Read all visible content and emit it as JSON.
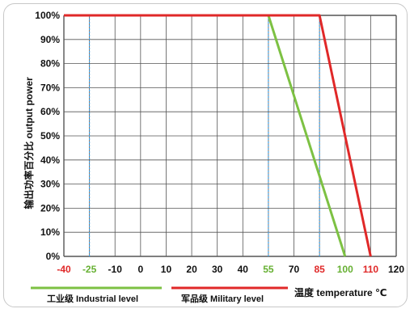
{
  "chart_data": {
    "type": "line",
    "ylabel": "输出功率百分比 output power",
    "xlabel": "温度 temperature ℃",
    "ylim": [
      0,
      100
    ],
    "y_ticks": [
      "0%",
      "10%",
      "20%",
      "30%",
      "40%",
      "50%",
      "60%",
      "70%",
      "80%",
      "90%",
      "100%"
    ],
    "x_ticks": [
      {
        "label": "-40",
        "color": "#e02828"
      },
      {
        "label": "-25",
        "color": "#66b032"
      },
      {
        "label": "-10",
        "color": "#111111"
      },
      {
        "label": "0",
        "color": "#111111"
      },
      {
        "label": "10",
        "color": "#111111"
      },
      {
        "label": "20",
        "color": "#111111"
      },
      {
        "label": "30",
        "color": "#111111"
      },
      {
        "label": "40",
        "color": "#111111"
      },
      {
        "label": "55",
        "color": "#66b032"
      },
      {
        "label": "70",
        "color": "#111111"
      },
      {
        "label": "85",
        "color": "#e02828"
      },
      {
        "label": "100",
        "color": "#66b032"
      },
      {
        "label": "110",
        "color": "#e02828"
      },
      {
        "label": "120",
        "color": "#111111"
      }
    ],
    "series": [
      {
        "name": "工业级 Industrial level",
        "color": "#7dc143",
        "points": [
          {
            "x": "-25",
            "y": 100
          },
          {
            "x": "55",
            "y": 100
          },
          {
            "x": "100",
            "y": 0
          }
        ]
      },
      {
        "name": "军品级 Military level",
        "color": "#e02828",
        "points": [
          {
            "x": "-40",
            "y": 100
          },
          {
            "x": "85",
            "y": 100
          },
          {
            "x": "110",
            "y": 0
          }
        ]
      }
    ],
    "dashed_markers": [
      "-25",
      "55",
      "85"
    ],
    "grid": true,
    "legend_position": "bottom"
  }
}
